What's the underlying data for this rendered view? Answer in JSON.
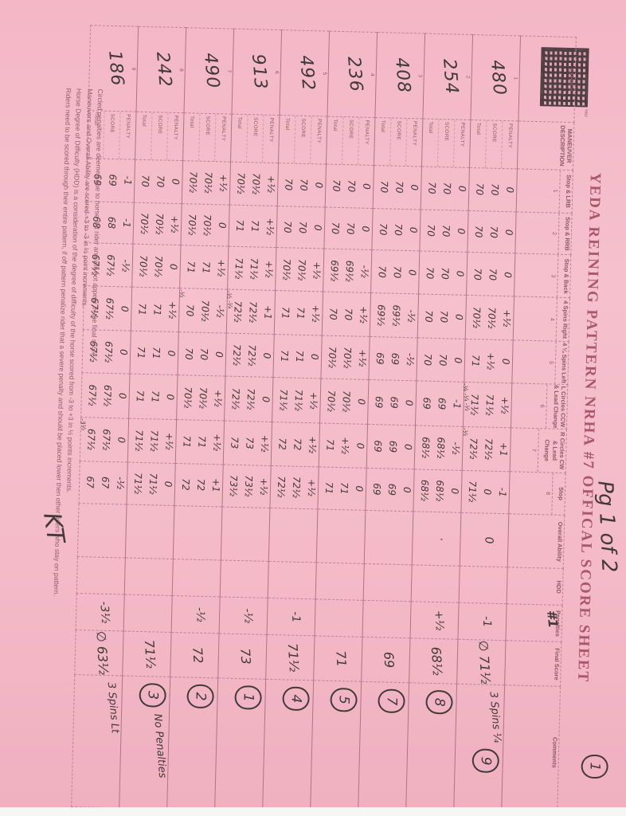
{
  "title": "YEDA REINING PATTERN NRHA #7 OFFICAL SCORE SHEET",
  "page_note": "Pg 1 of 2",
  "page_circle": "1",
  "judge_initials": "KT",
  "stamp": {
    "icon": "qr-stamp"
  },
  "table": {
    "exh_header": "EXHIB #",
    "desc_header": "MANEUVER DESCRIPTION",
    "row_labels": [
      "PENALTY",
      "SCORE",
      "Total"
    ],
    "maneuvers": [
      {
        "num": "1",
        "name": "Stop & LRB"
      },
      {
        "num": "2",
        "name": "Stop & RRB"
      },
      {
        "num": "3",
        "name": "Stop & Back"
      },
      {
        "num": "4",
        "name": "4 Spins Right"
      },
      {
        "num": "5",
        "name": "4 ¼ Spins Left"
      },
      {
        "num": "6",
        "name": "L Circles CCW & Lead Change"
      },
      {
        "num": "7",
        "name": "R Circles CW & Lead Change"
      },
      {
        "num": "8",
        "name": "Stop"
      }
    ],
    "extra_headers": {
      "overall": "Overall Ability",
      "hdd": "HDD",
      "penalties": "Penalties",
      "penalties_note": "#1",
      "final": "Final Score",
      "comments": "Comments"
    },
    "rows": [
      {
        "seq": "1",
        "exh": "480",
        "cells": [
          [
            "0",
            "70",
            "70"
          ],
          [
            "0",
            "70",
            "70"
          ],
          [
            "0",
            "70",
            "70"
          ],
          [
            "+½",
            "70½",
            "70½"
          ],
          [
            "0",
            "+½",
            "71"
          ],
          [
            "+½",
            "71½",
            "71½",
            "-⅛ -¼ -½"
          ],
          [
            "+1",
            "72½",
            "72½",
            "-½"
          ],
          [
            "-1",
            "0",
            "71½"
          ]
        ],
        "oa": "0",
        "hdd": "",
        "pen": "-1",
        "final": "∅ 71½",
        "comment": "3 Spins ¼",
        "place": "9"
      },
      {
        "seq": "2",
        "exh": "254",
        "cells": [
          [
            "0",
            "70",
            "70"
          ],
          [
            "0",
            "70",
            "70"
          ],
          [
            "0",
            "70",
            "70"
          ],
          [
            "0",
            "70",
            "70"
          ],
          [
            "0",
            "70",
            "70"
          ],
          [
            "-1",
            "69",
            "69"
          ],
          [
            "-½",
            "68½",
            "68½"
          ],
          [
            "0",
            "68½",
            "68½"
          ]
        ],
        "oa": "·",
        "hdd": "",
        "pen": "+½",
        "final": "68½",
        "comment": "",
        "place": "8"
      },
      {
        "seq": "3",
        "exh": "408",
        "cells": [
          [
            "0",
            "70",
            "70"
          ],
          [
            "0",
            "70",
            "70"
          ],
          [
            "0",
            "70",
            "70"
          ],
          [
            "-½",
            "69½",
            "69½"
          ],
          [
            "-½",
            "69",
            "69"
          ],
          [
            "0",
            "69",
            "69"
          ],
          [
            "0",
            "69",
            "69"
          ],
          [
            "0",
            "69",
            "69"
          ]
        ],
        "oa": "",
        "hdd": "",
        "pen": "",
        "final": "69",
        "comment": "",
        "place": "7"
      },
      {
        "seq": "4",
        "exh": "236",
        "cells": [
          [
            "0",
            "70",
            "70"
          ],
          [
            "0",
            "70",
            "70"
          ],
          [
            "-½",
            "69½",
            "69½"
          ],
          [
            "+½",
            "70",
            "70"
          ],
          [
            "+½",
            "70½",
            "70½"
          ],
          [
            "0",
            "70½",
            "70½"
          ],
          [
            "0",
            "+½",
            "71"
          ],
          [
            "0",
            "71",
            "71"
          ]
        ],
        "oa": "",
        "hdd": "",
        "pen": "",
        "final": "71",
        "comment": "",
        "place": "5"
      },
      {
        "seq": "5",
        "exh": "492",
        "cells": [
          [
            "0",
            "70",
            "70"
          ],
          [
            "0",
            "70",
            "70"
          ],
          [
            "+½",
            "70½",
            "70½"
          ],
          [
            "+½",
            "71",
            "71"
          ],
          [
            "0",
            "71",
            "71"
          ],
          [
            "+½",
            "71½",
            "71½"
          ],
          [
            "+½",
            "72",
            "72"
          ],
          [
            "+½",
            "72½",
            "72½"
          ]
        ],
        "oa": "",
        "hdd": "",
        "pen": "-1",
        "final": "71½",
        "comment": "",
        "place": "4"
      },
      {
        "seq": "6",
        "exh": "913",
        "cells": [
          [
            "+½",
            "70½",
            "70½"
          ],
          [
            "+½",
            "71",
            "71"
          ],
          [
            "+½",
            "71½",
            "71½"
          ],
          [
            "+1",
            "72½",
            "72½",
            "-½ -¼"
          ],
          [
            "0",
            "72½",
            "72½"
          ],
          [
            "0",
            "72½",
            "72½"
          ],
          [
            "+½",
            "73",
            "73"
          ],
          [
            "+½",
            "73½",
            "73½"
          ]
        ],
        "oa": "",
        "hdd": "",
        "pen": "-½",
        "final": "73",
        "comment": "",
        "place": "1"
      },
      {
        "seq": "7",
        "exh": "490",
        "cells": [
          [
            "+½",
            "70½",
            "70½"
          ],
          [
            "0",
            "70½",
            "70½"
          ],
          [
            "+½",
            "71",
            "71"
          ],
          [
            "-½",
            "70½",
            "70",
            "-½"
          ],
          [
            "0",
            "70",
            "70"
          ],
          [
            "+½",
            "70½",
            "70½"
          ],
          [
            "+½",
            "71",
            "71"
          ],
          [
            "+1",
            "72",
            "72"
          ]
        ],
        "oa": "",
        "hdd": "",
        "pen": "-½",
        "final": "72",
        "comment": "",
        "place": "2"
      },
      {
        "seq": "8",
        "exh": "242",
        "cells": [
          [
            "0",
            "70",
            "70"
          ],
          [
            "+½",
            "70½",
            "70½"
          ],
          [
            "0",
            "70½",
            "70½"
          ],
          [
            "+½",
            "71",
            "71"
          ],
          [
            "0",
            "71",
            "71"
          ],
          [
            "0",
            "71",
            "71"
          ],
          [
            "+½",
            "71½",
            "71½"
          ],
          [
            "0",
            "71½",
            "71½"
          ]
        ],
        "oa": "",
        "hdd": "",
        "pen": "",
        "final": "71½",
        "comment": "No Penalties",
        "place": "3"
      },
      {
        "seq": "9",
        "exh": "186",
        "cells": [
          [
            "-1",
            "69",
            "69"
          ],
          [
            "-1",
            "68",
            "68"
          ],
          [
            "-½",
            "67½",
            "67½"
          ],
          [
            "0",
            "67½",
            "67½"
          ],
          [
            "0",
            "67½",
            "67½"
          ],
          [
            "0",
            "67½",
            "67½"
          ],
          [
            "0",
            "67½",
            "67½",
            "-3½"
          ],
          [
            "-½",
            "67",
            "67"
          ]
        ],
        "oa": "",
        "hdd": "",
        "pen": "-3½",
        "final": "∅ 63½",
        "comment": "3 Spins Lt",
        "place": ""
      }
    ]
  },
  "footnotes": [
    "Circled penalties are deemed due to horse not rider and will not appear in the final score.",
    "Maneuvers and Overall Ability are scored +3 to -3 in ½ point increments.",
    "Horse Degree of Difficulty (HDD) is a consideration of the degree of difficulty of the horse scored from -3 to +3 in ½ points increments.",
    "Riders need to be scored through their entire pattern, if off pattern penalize rider that a severe penalty and should be placed lower then other riders who stay on pattern."
  ]
}
